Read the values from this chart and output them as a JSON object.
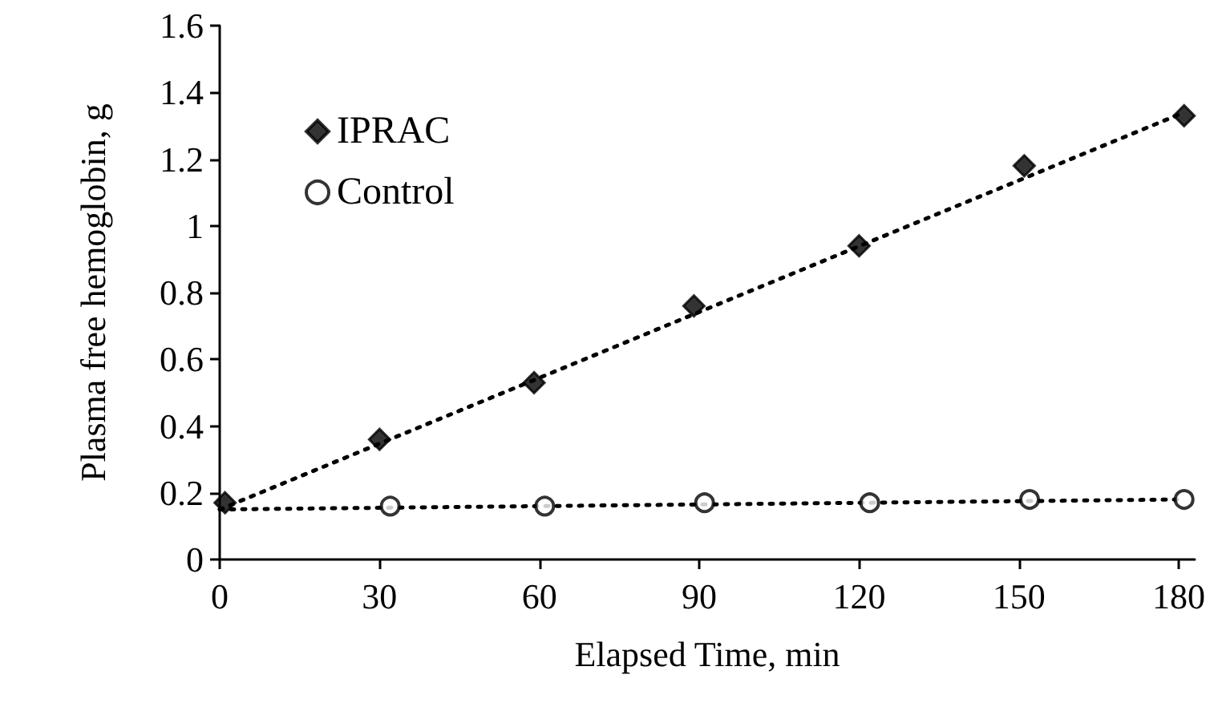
{
  "chart_data": {
    "type": "scatter",
    "xlabel": "Elapsed Time, min",
    "ylabel": "Plasma free hemoglobin, g",
    "xlim": [
      0,
      183
    ],
    "xticks": [
      0,
      30,
      60,
      90,
      120,
      150,
      180
    ],
    "ylim": [
      0,
      1.6
    ],
    "yticks": [
      0,
      0.2,
      0.4,
      0.6,
      0.8,
      1,
      1.2,
      1.4,
      1.6
    ],
    "grid": false,
    "legend": "top left",
    "series": [
      {
        "name": "IPRAC",
        "color": "#000000",
        "marker": "diamond",
        "x": [
          1,
          30,
          59,
          89,
          120,
          151,
          181
        ],
        "values": [
          0.17,
          0.36,
          0.53,
          0.76,
          0.94,
          1.18,
          1.33
        ]
      },
      {
        "name": "Control",
        "color": "#000000",
        "marker": "circle",
        "x": [
          32,
          61,
          91,
          122,
          152,
          181
        ],
        "values": [
          0.16,
          0.16,
          0.17,
          0.17,
          0.18,
          0.18
        ]
      },
      {
        "type": "line",
        "color": "#000000",
        "line_style": "dotted",
        "marker": "none",
        "x": [
          0,
          181
        ],
        "values": [
          0.15,
          1.34
        ]
      },
      {
        "type": "line",
        "color": "#000000",
        "line_style": "dotted",
        "marker": "none",
        "x": [
          0,
          181
        ],
        "values": [
          0.15,
          0.18
        ]
      }
    ]
  }
}
